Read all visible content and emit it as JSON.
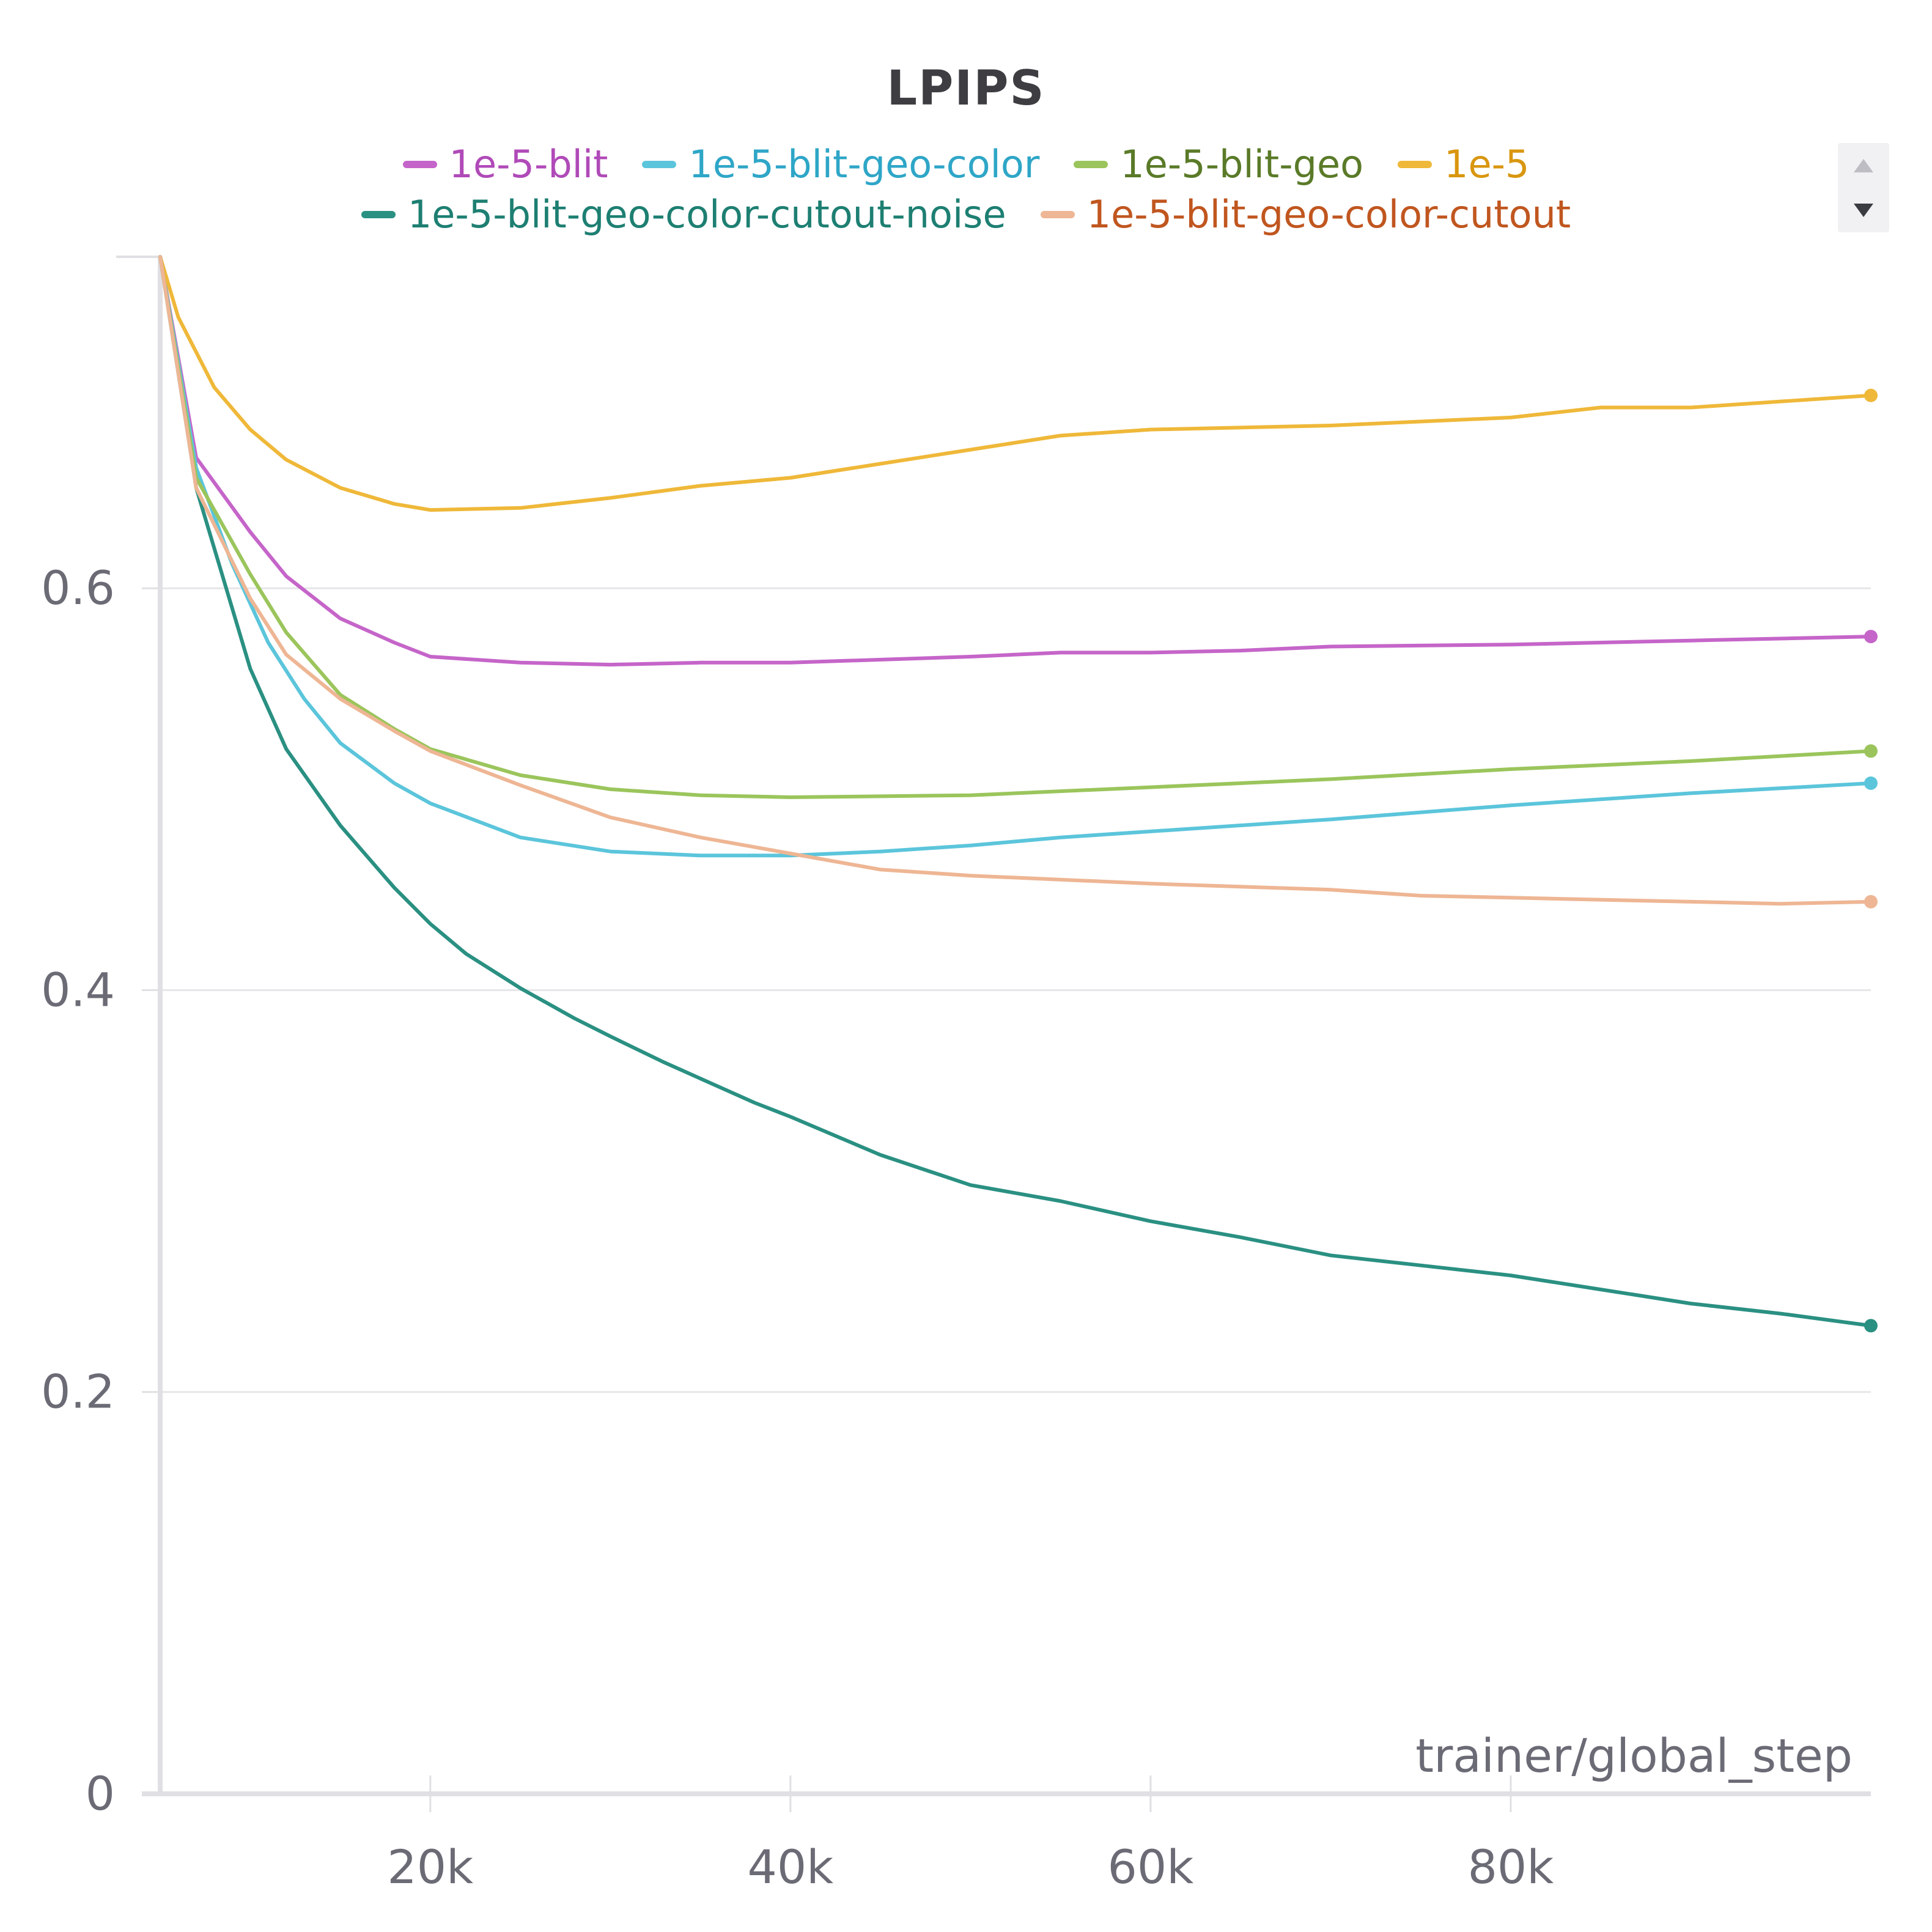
{
  "chart_data": {
    "type": "line",
    "title": "LPIPS",
    "xlabel": "trainer/global_step",
    "ylabel": "",
    "xlim": [
      5000,
      100000
    ],
    "ylim": [
      0,
      0.765
    ],
    "x_ticks": [
      20000,
      40000,
      60000,
      80000
    ],
    "x_tick_labels": [
      "20k",
      "40k",
      "60k",
      "80k"
    ],
    "y_ticks": [
      0,
      0.2,
      0.4,
      0.6
    ],
    "y_tick_labels": [
      "0",
      "0.2",
      "0.4",
      "0.6"
    ],
    "grid": "horizontal",
    "legend_position": "top",
    "series": [
      {
        "name": "1e-5-blit",
        "color": "#c565c9",
        "text_color": "#b04ab8",
        "x": [
          5000,
          7000,
          10000,
          12000,
          15000,
          18000,
          20000,
          25000,
          30000,
          35000,
          40000,
          50000,
          55000,
          60000,
          65000,
          70000,
          80000,
          90000,
          100000
        ],
        "y": [
          0.765,
          0.665,
          0.628,
          0.606,
          0.585,
          0.573,
          0.566,
          0.563,
          0.562,
          0.563,
          0.563,
          0.566,
          0.568,
          0.568,
          0.569,
          0.571,
          0.572,
          0.574,
          0.576
        ]
      },
      {
        "name": "1e-5-blit-geo-color",
        "color": "#5bc5db",
        "text_color": "#2ea6c7",
        "x": [
          5000,
          7000,
          9000,
          11000,
          13000,
          15000,
          18000,
          20000,
          25000,
          30000,
          35000,
          40000,
          45000,
          50000,
          55000,
          60000,
          70000,
          80000,
          90000,
          100000
        ],
        "y": [
          0.765,
          0.66,
          0.612,
          0.573,
          0.545,
          0.523,
          0.503,
          0.493,
          0.476,
          0.469,
          0.467,
          0.467,
          0.469,
          0.472,
          0.476,
          0.479,
          0.485,
          0.492,
          0.498,
          0.503
        ]
      },
      {
        "name": "1e-5-blit-geo",
        "color": "#9bc55c",
        "text_color": "#5a7a28",
        "x": [
          5000,
          7000,
          10000,
          12000,
          15000,
          18000,
          20000,
          25000,
          30000,
          35000,
          40000,
          50000,
          60000,
          70000,
          80000,
          90000,
          100000
        ],
        "y": [
          0.765,
          0.655,
          0.607,
          0.578,
          0.547,
          0.53,
          0.52,
          0.507,
          0.5,
          0.497,
          0.496,
          0.497,
          0.501,
          0.505,
          0.51,
          0.514,
          0.519
        ]
      },
      {
        "name": "1e-5",
        "color": "#efb839",
        "text_color": "#d9960f",
        "x": [
          5000,
          6000,
          8000,
          10000,
          12000,
          15000,
          18000,
          20000,
          25000,
          30000,
          35000,
          40000,
          45000,
          50000,
          55000,
          60000,
          70000,
          80000,
          85000,
          90000,
          100000
        ],
        "y": [
          0.765,
          0.735,
          0.7,
          0.679,
          0.664,
          0.65,
          0.642,
          0.639,
          0.64,
          0.645,
          0.651,
          0.655,
          0.662,
          0.669,
          0.676,
          0.679,
          0.681,
          0.685,
          0.69,
          0.69,
          0.696
        ]
      },
      {
        "name": "1e-5-blit-geo-color-cutout-noise",
        "color": "#2a9082",
        "text_color": "#1d7f72",
        "x": [
          5000,
          7000,
          10000,
          12000,
          15000,
          18000,
          20000,
          22000,
          25000,
          28000,
          30000,
          33000,
          35000,
          38000,
          40000,
          45000,
          50000,
          55000,
          60000,
          65000,
          70000,
          75000,
          80000,
          85000,
          90000,
          95000,
          100000
        ],
        "y": [
          0.765,
          0.65,
          0.56,
          0.52,
          0.482,
          0.451,
          0.433,
          0.418,
          0.401,
          0.386,
          0.377,
          0.364,
          0.356,
          0.344,
          0.337,
          0.318,
          0.303,
          0.295,
          0.285,
          0.277,
          0.268,
          0.263,
          0.258,
          0.251,
          0.244,
          0.239,
          0.233
        ]
      },
      {
        "name": "1e-5-blit-geo-color-cutout",
        "color": "#eeb694",
        "text_color": "#c0561f",
        "x": [
          5000,
          7000,
          10000,
          12000,
          15000,
          18000,
          20000,
          25000,
          30000,
          35000,
          40000,
          45000,
          50000,
          60000,
          70000,
          75000,
          80000,
          90000,
          95000,
          100000
        ],
        "y": [
          0.765,
          0.65,
          0.595,
          0.567,
          0.545,
          0.529,
          0.519,
          0.502,
          0.486,
          0.476,
          0.468,
          0.46,
          0.457,
          0.453,
          0.45,
          0.447,
          0.446,
          0.444,
          0.443,
          0.444
        ]
      }
    ]
  },
  "legend": {
    "scroll_up_icon": "triangle-up-icon",
    "scroll_down_icon": "triangle-down-icon"
  }
}
